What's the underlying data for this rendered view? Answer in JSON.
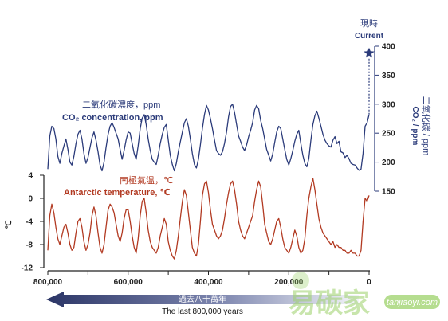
{
  "chart_data": [
    {
      "type": "line",
      "name": "co2",
      "title_zh": "二氧化碳濃度，ppm",
      "title_en": "CO₂ concentration, ppm",
      "ylabel_zh": "二氧化碳 / ppm",
      "ylabel_en": "CO₂ / ppm",
      "ylim": [
        150,
        400
      ],
      "yticks": [
        "400",
        "350",
        "300",
        "250",
        "200",
        "150"
      ],
      "xlim": [
        800000,
        0
      ],
      "color": "#2b3b7a",
      "x": [
        800000,
        795000,
        790000,
        785000,
        780000,
        775000,
        770000,
        765000,
        760000,
        755000,
        750000,
        745000,
        740000,
        735000,
        730000,
        725000,
        720000,
        715000,
        710000,
        705000,
        700000,
        695000,
        690000,
        685000,
        680000,
        675000,
        670000,
        665000,
        660000,
        655000,
        650000,
        645000,
        640000,
        635000,
        630000,
        625000,
        620000,
        615000,
        610000,
        605000,
        600000,
        595000,
        590000,
        585000,
        580000,
        575000,
        570000,
        565000,
        560000,
        555000,
        550000,
        545000,
        540000,
        535000,
        530000,
        525000,
        520000,
        515000,
        510000,
        505000,
        500000,
        495000,
        490000,
        485000,
        480000,
        475000,
        470000,
        465000,
        460000,
        455000,
        450000,
        445000,
        440000,
        435000,
        430000,
        425000,
        420000,
        415000,
        410000,
        405000,
        400000,
        395000,
        390000,
        385000,
        380000,
        375000,
        370000,
        365000,
        360000,
        355000,
        350000,
        345000,
        340000,
        335000,
        330000,
        325000,
        320000,
        315000,
        310000,
        305000,
        300000,
        295000,
        290000,
        285000,
        280000,
        275000,
        270000,
        265000,
        260000,
        255000,
        250000,
        245000,
        240000,
        235000,
        230000,
        225000,
        220000,
        215000,
        210000,
        205000,
        200000,
        195000,
        190000,
        185000,
        180000,
        175000,
        170000,
        165000,
        160000,
        155000,
        150000,
        145000,
        140000,
        135000,
        130000,
        125000,
        120000,
        115000,
        110000,
        105000,
        100000,
        95000,
        90000,
        85000,
        80000,
        75000,
        70000,
        65000,
        60000,
        55000,
        50000,
        45000,
        40000,
        35000,
        30000,
        25000,
        20000,
        15000,
        10000,
        5000,
        0
      ],
      "values": [
        188,
        245,
        262,
        258,
        240,
        210,
        198,
        215,
        228,
        240,
        222,
        200,
        195,
        210,
        232,
        248,
        255,
        240,
        215,
        198,
        208,
        225,
        242,
        252,
        238,
        218,
        195,
        185,
        200,
        225,
        248,
        262,
        268,
        260,
        250,
        240,
        222,
        205,
        220,
        238,
        252,
        250,
        232,
        215,
        205,
        228,
        258,
        276,
        282,
        265,
        240,
        220,
        205,
        200,
        196,
        212,
        232,
        248,
        260,
        265,
        238,
        212,
        196,
        185,
        198,
        218,
        235,
        252,
        268,
        275,
        262,
        240,
        215,
        196,
        190,
        205,
        230,
        258,
        282,
        298,
        290,
        275,
        258,
        238,
        220,
        215,
        212,
        218,
        232,
        252,
        278,
        296,
        300,
        286,
        265,
        245,
        236,
        226,
        220,
        230,
        244,
        255,
        268,
        290,
        298,
        292,
        272,
        258,
        240,
        222,
        212,
        202,
        214,
        234,
        252,
        262,
        258,
        240,
        222,
        205,
        195,
        206,
        220,
        236,
        248,
        255,
        232,
        212,
        198,
        192,
        206,
        238,
        265,
        280,
        288,
        276,
        262,
        248,
        238,
        232,
        228,
        226,
        238,
        244,
        232,
        236,
        218,
        216,
        208,
        212,
        206,
        198,
        196,
        195,
        190,
        186,
        188,
        215,
        262,
        268,
        282
      ],
      "current": {
        "x": 0,
        "y": 388
      },
      "current_label_zh": "現時",
      "current_label_en": "Current"
    },
    {
      "type": "line",
      "name": "temperature",
      "title_zh": "南極氣溫，℃",
      "title_en": "Antarctic temperature, ℃",
      "ylabel": "℃",
      "ylim": [
        -12,
        4
      ],
      "yticks": [
        "4",
        "0",
        "-4",
        "-8",
        "-12"
      ],
      "xlim": [
        800000,
        0
      ],
      "color": "#b23a22",
      "x": [
        800000,
        795000,
        790000,
        785000,
        780000,
        775000,
        770000,
        765000,
        760000,
        755000,
        750000,
        745000,
        740000,
        735000,
        730000,
        725000,
        720000,
        715000,
        710000,
        705000,
        700000,
        695000,
        690000,
        685000,
        680000,
        675000,
        670000,
        665000,
        660000,
        655000,
        650000,
        645000,
        640000,
        635000,
        630000,
        625000,
        620000,
        615000,
        610000,
        605000,
        600000,
        595000,
        590000,
        585000,
        580000,
        575000,
        570000,
        565000,
        560000,
        555000,
        550000,
        545000,
        540000,
        535000,
        530000,
        525000,
        520000,
        515000,
        510000,
        505000,
        500000,
        495000,
        490000,
        485000,
        480000,
        475000,
        470000,
        465000,
        460000,
        455000,
        450000,
        445000,
        440000,
        435000,
        430000,
        425000,
        420000,
        415000,
        410000,
        405000,
        400000,
        395000,
        390000,
        385000,
        380000,
        375000,
        370000,
        365000,
        360000,
        355000,
        350000,
        345000,
        340000,
        335000,
        330000,
        325000,
        320000,
        315000,
        310000,
        305000,
        300000,
        295000,
        290000,
        285000,
        280000,
        275000,
        270000,
        265000,
        260000,
        255000,
        250000,
        245000,
        240000,
        235000,
        230000,
        225000,
        220000,
        215000,
        210000,
        205000,
        200000,
        195000,
        190000,
        185000,
        180000,
        175000,
        170000,
        165000,
        160000,
        155000,
        150000,
        145000,
        140000,
        135000,
        130000,
        125000,
        120000,
        115000,
        110000,
        105000,
        100000,
        95000,
        90000,
        85000,
        80000,
        75000,
        70000,
        65000,
        60000,
        55000,
        50000,
        45000,
        40000,
        35000,
        30000,
        25000,
        20000,
        15000,
        10000,
        5000,
        0
      ],
      "values": [
        -9,
        -3,
        -1,
        -2.5,
        -5,
        -7,
        -8,
        -6.5,
        -5,
        -4.5,
        -6,
        -8,
        -9,
        -8.5,
        -6,
        -4,
        -3.5,
        -5,
        -7.5,
        -9,
        -8,
        -6,
        -3,
        -1.5,
        -3,
        -6,
        -8.5,
        -9.5,
        -8,
        -5,
        -2,
        -1,
        -1.5,
        -2.5,
        -4.5,
        -6.5,
        -7.5,
        -6,
        -3.5,
        -2,
        -2,
        -4,
        -6.5,
        -8.5,
        -9.5,
        -7,
        -3,
        -0.5,
        0,
        -2.5,
        -5.5,
        -7.5,
        -8.5,
        -9,
        -9.5,
        -8.5,
        -6.5,
        -5,
        -3.5,
        -4.5,
        -7.5,
        -9,
        -10,
        -10.5,
        -9,
        -6.5,
        -3.5,
        -0.5,
        1.5,
        0.5,
        -2.5,
        -5.5,
        -8.5,
        -9.5,
        -10,
        -8,
        -4,
        0.5,
        2.5,
        3,
        1,
        -2,
        -4.5,
        -5.5,
        -6.5,
        -7,
        -6.5,
        -5.5,
        -3.5,
        -1,
        1,
        2.5,
        3,
        1.5,
        -1,
        -4,
        -5.5,
        -6.5,
        -7,
        -6,
        -5,
        -4,
        -3,
        -0.5,
        1.5,
        3,
        2,
        -1,
        -4.5,
        -6,
        -7.5,
        -8,
        -7,
        -5.5,
        -4,
        -3.5,
        -5,
        -7,
        -8.5,
        -9,
        -9.5,
        -8.5,
        -7,
        -5.5,
        -6.5,
        -8.5,
        -9.5,
        -9,
        -7,
        -3,
        0,
        2,
        3.5,
        1.5,
        -1,
        -3.5,
        -5,
        -6,
        -6.5,
        -7,
        -7.5,
        -8,
        -7.5,
        -8.5,
        -8,
        -8.5,
        -8.5,
        -9,
        -9,
        -9.5,
        -9.5,
        -9,
        -9.5,
        -9.5,
        -10,
        -10,
        -9,
        -4,
        0,
        -0.5,
        0.5
      ]
    }
  ],
  "x_axis": {
    "ticks": [
      "800,000",
      "600,000",
      "400,000",
      "200,000",
      "0"
    ],
    "arrow_label_zh": "過去八十萬年",
    "arrow_label_en": "The last 800,000 years"
  },
  "watermark": {
    "text": "易碳家",
    "pill_text": "tanjiaoyi.com"
  },
  "colors": {
    "co2": "#2b3b7a",
    "temperature": "#b23a22",
    "axis": "#222222",
    "watermark": "#9cd16a",
    "arrow_dark": "#2b3566"
  }
}
